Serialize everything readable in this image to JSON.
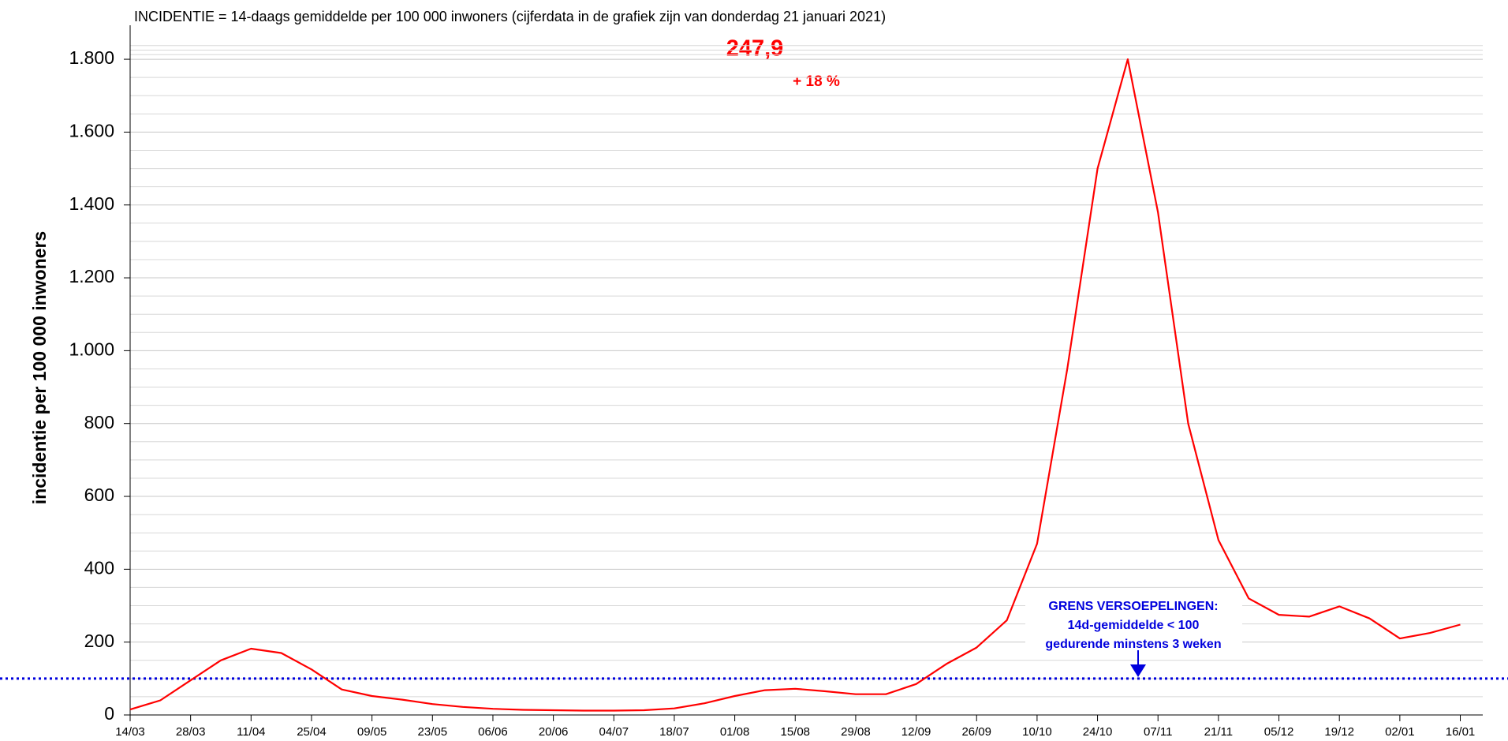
{
  "chart_data": {
    "type": "line",
    "title": "INCIDENTIE = 14-daags gemiddelde per 100 000 inwoners (cijferdata in de grafiek zijn van donderdag 21 januari 2021)",
    "y_label": "incidentie per 100 000 inwoners",
    "annotations": [
      "247,9",
      "+ 18 %"
    ],
    "threshold": {
      "value": 100,
      "color": "#0000dd",
      "label": [
        "GRENS VERSOEPELINGEN:",
        "14d-gemiddelde < 100",
        "gedurende minstens 3 weken"
      ]
    },
    "categories": [
      "14/03",
      null,
      "28/03",
      null,
      "11/04",
      null,
      "25/04",
      null,
      "09/05",
      null,
      "23/05",
      null,
      "06/06",
      null,
      "20/06",
      null,
      "04/07",
      null,
      "18/07",
      null,
      "01/08",
      null,
      "15/08",
      null,
      "29/08",
      null,
      "12/09",
      null,
      "26/09",
      null,
      "10/10",
      null,
      "24/10",
      null,
      "07/11",
      null,
      "21/11",
      null,
      "05/12",
      null,
      "19/12",
      null,
      "02/01",
      null,
      "16/01"
    ],
    "series": [
      {
        "name": "incidentie",
        "color": "#ff0000",
        "values": [
          15,
          40,
          95,
          150,
          182,
          170,
          125,
          70,
          52,
          42,
          30,
          22,
          17,
          14,
          13,
          12,
          12,
          13,
          18,
          32,
          52,
          68,
          72,
          65,
          57,
          57,
          85,
          140,
          185,
          260,
          470,
          950,
          1500,
          1800,
          1380,
          800,
          480,
          320,
          275,
          270,
          298,
          265,
          210,
          225,
          248
        ]
      }
    ],
    "ylim": [
      0,
      1850
    ],
    "yticks": [
      {
        "value": 0,
        "label": "0"
      },
      {
        "value": 200,
        "label": "200"
      },
      {
        "value": 400,
        "label": "400"
      },
      {
        "value": 600,
        "label": "600"
      },
      {
        "value": 800,
        "label": "800"
      },
      {
        "value": 1000,
        "label": "1.000"
      },
      {
        "value": 1200,
        "label": "1.200"
      },
      {
        "value": 1400,
        "label": "1.400"
      },
      {
        "value": 1600,
        "label": "1.600"
      },
      {
        "value": 1800,
        "label": "1.800"
      }
    ],
    "grid": true
  }
}
